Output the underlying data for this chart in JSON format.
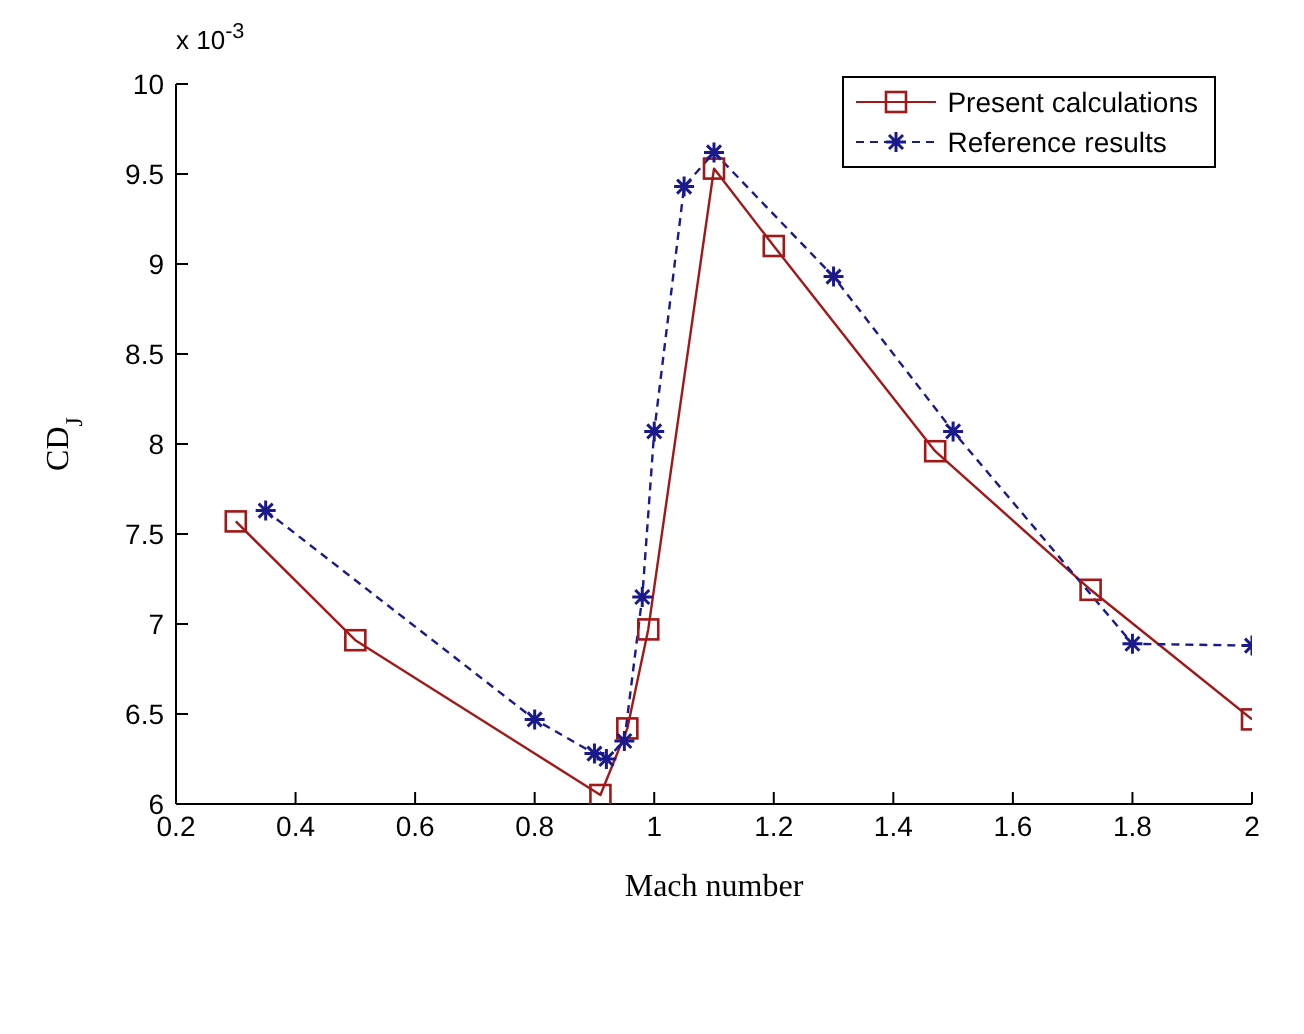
{
  "chart_data": {
    "type": "line",
    "xlabel": "Mach number",
    "ylabel": "CD$_{J}$",
    "annotations": [
      "x 10$^{-3}$"
    ],
    "xlim": [
      0.2,
      2
    ],
    "xticks": [
      0.2,
      0.4,
      0.6,
      0.8,
      1,
      1.2,
      1.4,
      1.6,
      1.8,
      2
    ],
    "ylim": [
      6,
      10
    ],
    "yticks": [
      6,
      6.5,
      7,
      7.5,
      8,
      8.5,
      9,
      9.5,
      10
    ],
    "grid": false,
    "legend": "top right",
    "series": [
      {
        "name": "Present calculations",
        "color": "#a01818",
        "marker": "square",
        "line_style": "solid",
        "x": [
          0.3,
          0.5,
          0.91,
          0.955,
          0.99,
          1.1,
          1.2,
          1.47,
          1.73,
          2.0
        ],
        "values": [
          7.57,
          6.91,
          6.05,
          6.42,
          6.97,
          9.53,
          9.1,
          7.96,
          7.19,
          6.47
        ]
      },
      {
        "name": "Reference results",
        "color": "#1a1a8c",
        "marker": "cross",
        "line_style": "dashed",
        "x": [
          0.35,
          0.8,
          0.9,
          0.92,
          0.95,
          0.98,
          1.0,
          1.05,
          1.1,
          1.3,
          1.5,
          1.8,
          2.0
        ],
        "values": [
          7.63,
          6.47,
          6.28,
          6.25,
          6.35,
          7.15,
          8.07,
          9.43,
          9.62,
          8.93,
          8.07,
          6.89,
          6.88
        ]
      }
    ]
  }
}
